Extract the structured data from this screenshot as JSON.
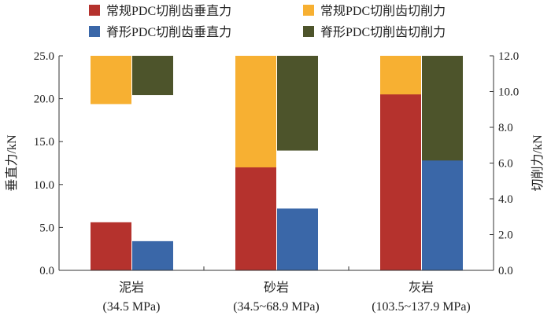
{
  "chart_data": {
    "type": "bar",
    "subtype": "overlapping-dual-axis",
    "categories": [
      {
        "name": "泥岩",
        "range": "(34.5 MPa)"
      },
      {
        "name": "砂岩",
        "range": "(34.5~68.9 MPa)"
      },
      {
        "name": "灰岩",
        "range": "(103.5~137.9 MPa)"
      }
    ],
    "series": [
      {
        "name": "常规PDC切削齿垂直力",
        "axis": "left",
        "position": "left",
        "color": "#b5322d",
        "values": [
          5.6,
          12.0,
          20.5
        ]
      },
      {
        "name": "常规PDC切削齿切削力",
        "axis": "right",
        "position": "left",
        "color": "#f7b032",
        "values": [
          2.7,
          6.6,
          11.3
        ]
      },
      {
        "name": "脊形PDC切削齿垂直力",
        "axis": "left",
        "position": "right",
        "color": "#3a67a8",
        "values": [
          3.4,
          7.2,
          12.8
        ]
      },
      {
        "name": "脊形PDC切削齿切削力",
        "axis": "right",
        "position": "right",
        "color": "#4d542b",
        "values": [
          2.2,
          5.3,
          7.8
        ]
      }
    ],
    "left_axis": {
      "label": "垂直力/kN",
      "min": 0,
      "max": 25,
      "ticks": [
        "0.0",
        "5.0",
        "10.0",
        "15.0",
        "20.0",
        "25.0"
      ]
    },
    "right_axis": {
      "label": "切削力/kN",
      "min": 0,
      "max": 12,
      "ticks": [
        "0.0",
        "2.0",
        "4.0",
        "6.0",
        "8.0",
        "10.0",
        "12.0"
      ]
    },
    "legend": {
      "placement": "top",
      "columns": 2
    }
  }
}
